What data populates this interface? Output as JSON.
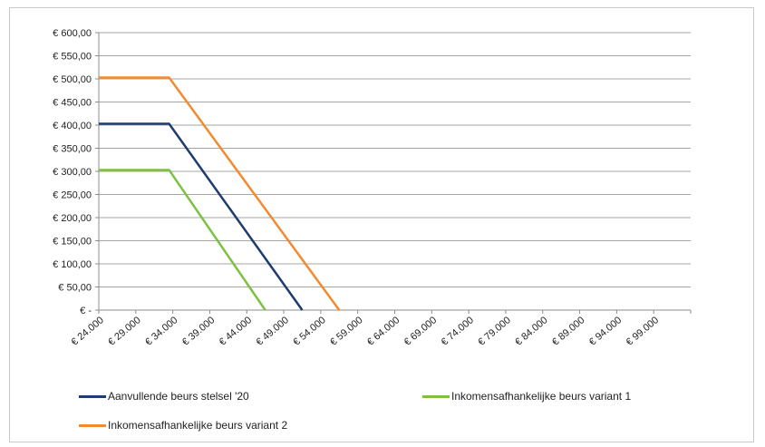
{
  "chart_data": {
    "type": "line",
    "x": [
      24000,
      29000,
      34000,
      39000,
      44000,
      49000,
      54000,
      59000,
      64000,
      69000,
      74000,
      79000,
      84000,
      89000,
      94000,
      99000
    ],
    "x_tick_labels": [
      "€ 24.000",
      "€ 29.000",
      "€ 34.000",
      "€ 39.000",
      "€ 44.000",
      "€ 49.000",
      "€ 54.000",
      "€ 59.000",
      "€ 64.000",
      "€ 69.000",
      "€ 74.000",
      "€ 79.000",
      "€ 84.000",
      "€ 89.000",
      "€ 94.000",
      "€ 99.000"
    ],
    "y_tick_labels": [
      "€ -",
      "€ 50,00",
      "€ 100,00",
      "€ 150,00",
      "€ 200,00",
      "€ 250,00",
      "€ 300,00",
      "€ 350,00",
      "€ 400,00",
      "€ 450,00",
      "€ 500,00",
      "€ 550,00",
      "€ 600,00"
    ],
    "ylim": [
      0,
      600
    ],
    "xlim": [
      24000,
      104000
    ],
    "grid": true,
    "legend_position": "bottom",
    "title": "",
    "xlabel": "",
    "ylabel": "",
    "series": [
      {
        "name": "Aanvullende beurs stelsel '20",
        "color": "#1f3b73",
        "points": [
          [
            24000,
            403
          ],
          [
            33500,
            403
          ],
          [
            51500,
            0
          ]
        ]
      },
      {
        "name": "Inkomensafhankelijke beurs variant 1",
        "color": "#7cc142",
        "points": [
          [
            24000,
            303
          ],
          [
            33500,
            303
          ],
          [
            46500,
            0
          ]
        ]
      },
      {
        "name": "Inkomensafhankelijke beurs variant 2",
        "color": "#f28a30",
        "points": [
          [
            24000,
            503
          ],
          [
            33500,
            503
          ],
          [
            56500,
            0
          ]
        ]
      }
    ]
  }
}
